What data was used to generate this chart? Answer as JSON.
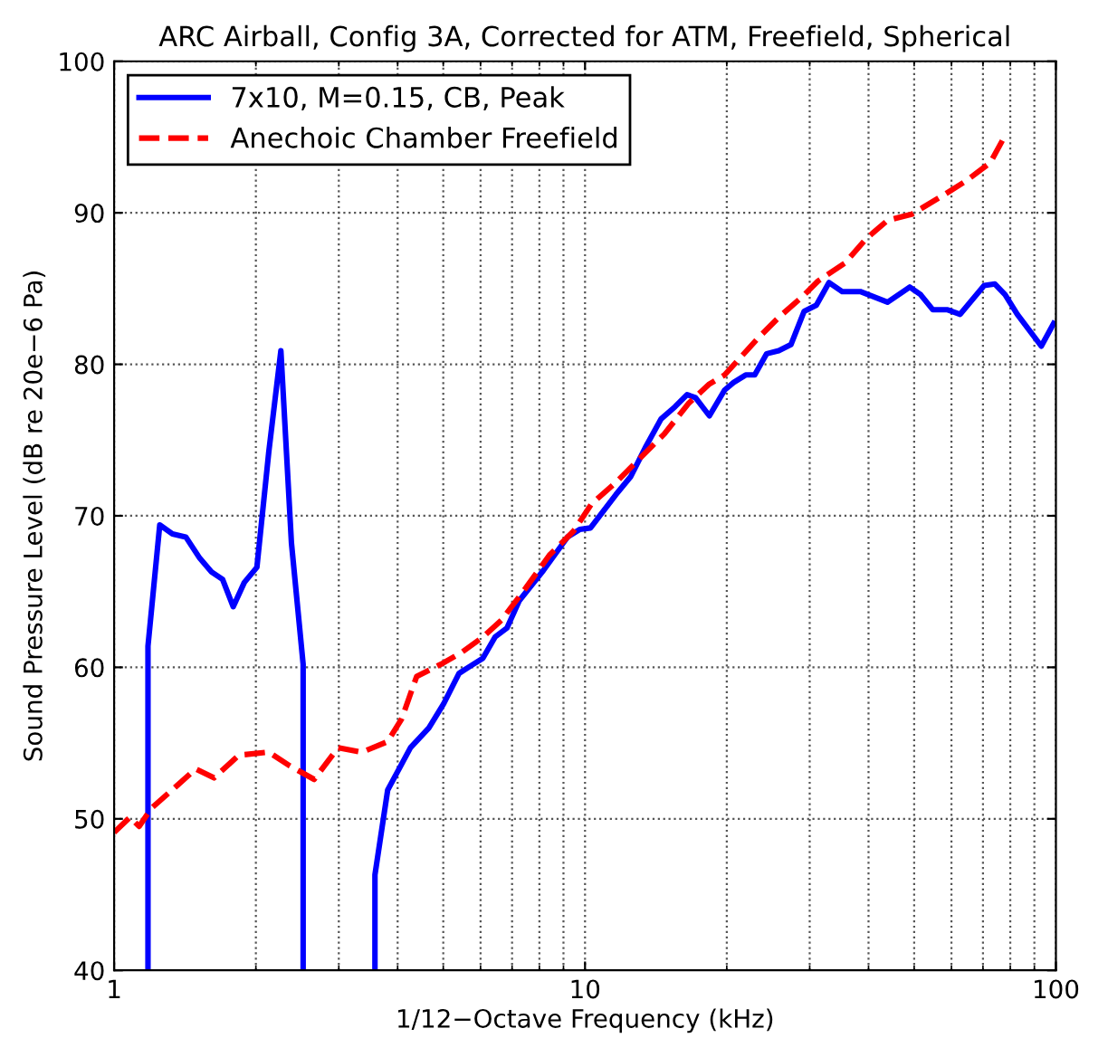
{
  "chart_data": {
    "type": "line",
    "title": "ARC Airball, Config 3A, Corrected for ATM, Freefield, Spherical",
    "xlabel": "1/12−Octave Frequency (kHz)",
    "ylabel": "Sound Pressure Level (dB re 20e−6 Pa)",
    "log": "x",
    "xlim": [
      1,
      100
    ],
    "xticks": [
      1,
      10,
      100
    ],
    "ylim": [
      40,
      100
    ],
    "yticks": [
      40,
      50,
      60,
      70,
      80,
      90,
      100
    ],
    "grid": true,
    "legend": "top left",
    "series": [
      {
        "name": "7x10, M=0.15, CB, Peak",
        "color": "#0000ff",
        "line_style": "solid",
        "x": [
          1.18,
          1.18,
          1.25,
          1.33,
          1.42,
          1.52,
          1.61,
          1.7,
          1.79,
          1.89,
          2.01,
          2.13,
          2.26,
          2.38,
          2.52,
          2.52,
          3.0,
          3.58,
          3.58,
          3.81,
          4.26,
          4.66,
          5.01,
          5.4,
          5.72,
          6.07,
          6.44,
          6.83,
          7.25,
          8.16,
          9.18,
          9.74,
          10.27,
          11.63,
          12.51,
          13.48,
          14.51,
          15.53,
          16.47,
          17.16,
          18.37,
          19.79,
          20.68,
          21.94,
          22.93,
          24.31,
          25.79,
          27.37,
          29.2,
          30.99,
          32.97,
          35.17,
          38.42,
          43.88,
          48.93,
          51.6,
          54.8,
          58.9,
          62.6,
          70.4,
          74.2,
          78.0,
          82.8,
          93.1,
          98.9
        ],
        "values": [
          40,
          61.4,
          69.4,
          68.8,
          68.6,
          67.2,
          66.3,
          65.8,
          64.0,
          65.6,
          66.6,
          74.2,
          80.9,
          68.2,
          60.2,
          40,
          null,
          40,
          46.3,
          51.9,
          54.7,
          56.0,
          57.6,
          59.6,
          60.1,
          60.6,
          62.0,
          62.6,
          64.4,
          66.4,
          68.6,
          69.1,
          69.2,
          71.4,
          72.6,
          74.6,
          76.4,
          77.2,
          78.0,
          77.8,
          76.6,
          78.3,
          78.8,
          79.3,
          79.3,
          80.7,
          80.9,
          81.3,
          83.5,
          83.9,
          85.4,
          84.8,
          84.8,
          84.1,
          85.1,
          84.6,
          83.6,
          83.6,
          83.3,
          85.2,
          85.3,
          84.6,
          83.3,
          81.2,
          82.7
        ]
      },
      {
        "name": "Anechoic Chamber Freefield",
        "color": "#ff0000",
        "line_style": "dashed",
        "x": [
          1.0,
          1.08,
          1.13,
          1.2,
          1.35,
          1.49,
          1.63,
          1.84,
          2.13,
          2.36,
          2.66,
          2.99,
          3.36,
          3.81,
          4.08,
          4.39,
          4.94,
          5.48,
          6.07,
          6.64,
          7.47,
          8.4,
          9.46,
          10.33,
          11.63,
          13.08,
          14.73,
          16.57,
          18.37,
          19.79,
          23.26,
          25.79,
          29.02,
          31.26,
          35.7,
          39.57,
          43.88,
          49.37,
          57.25,
          64.41,
          72.51,
          78.0
        ],
        "values": [
          49.1,
          50.1,
          49.5,
          50.7,
          52.1,
          53.3,
          52.7,
          54.2,
          54.4,
          53.5,
          52.6,
          54.7,
          54.4,
          55.1,
          56.6,
          59.4,
          60.2,
          61.0,
          62.0,
          63.1,
          65.2,
          67.4,
          69.0,
          70.8,
          72.2,
          73.8,
          75.4,
          77.4,
          78.7,
          79.3,
          81.7,
          83.1,
          84.5,
          85.5,
          86.7,
          88.3,
          89.5,
          89.9,
          91.1,
          92.1,
          93.3,
          95.1
        ]
      }
    ]
  }
}
